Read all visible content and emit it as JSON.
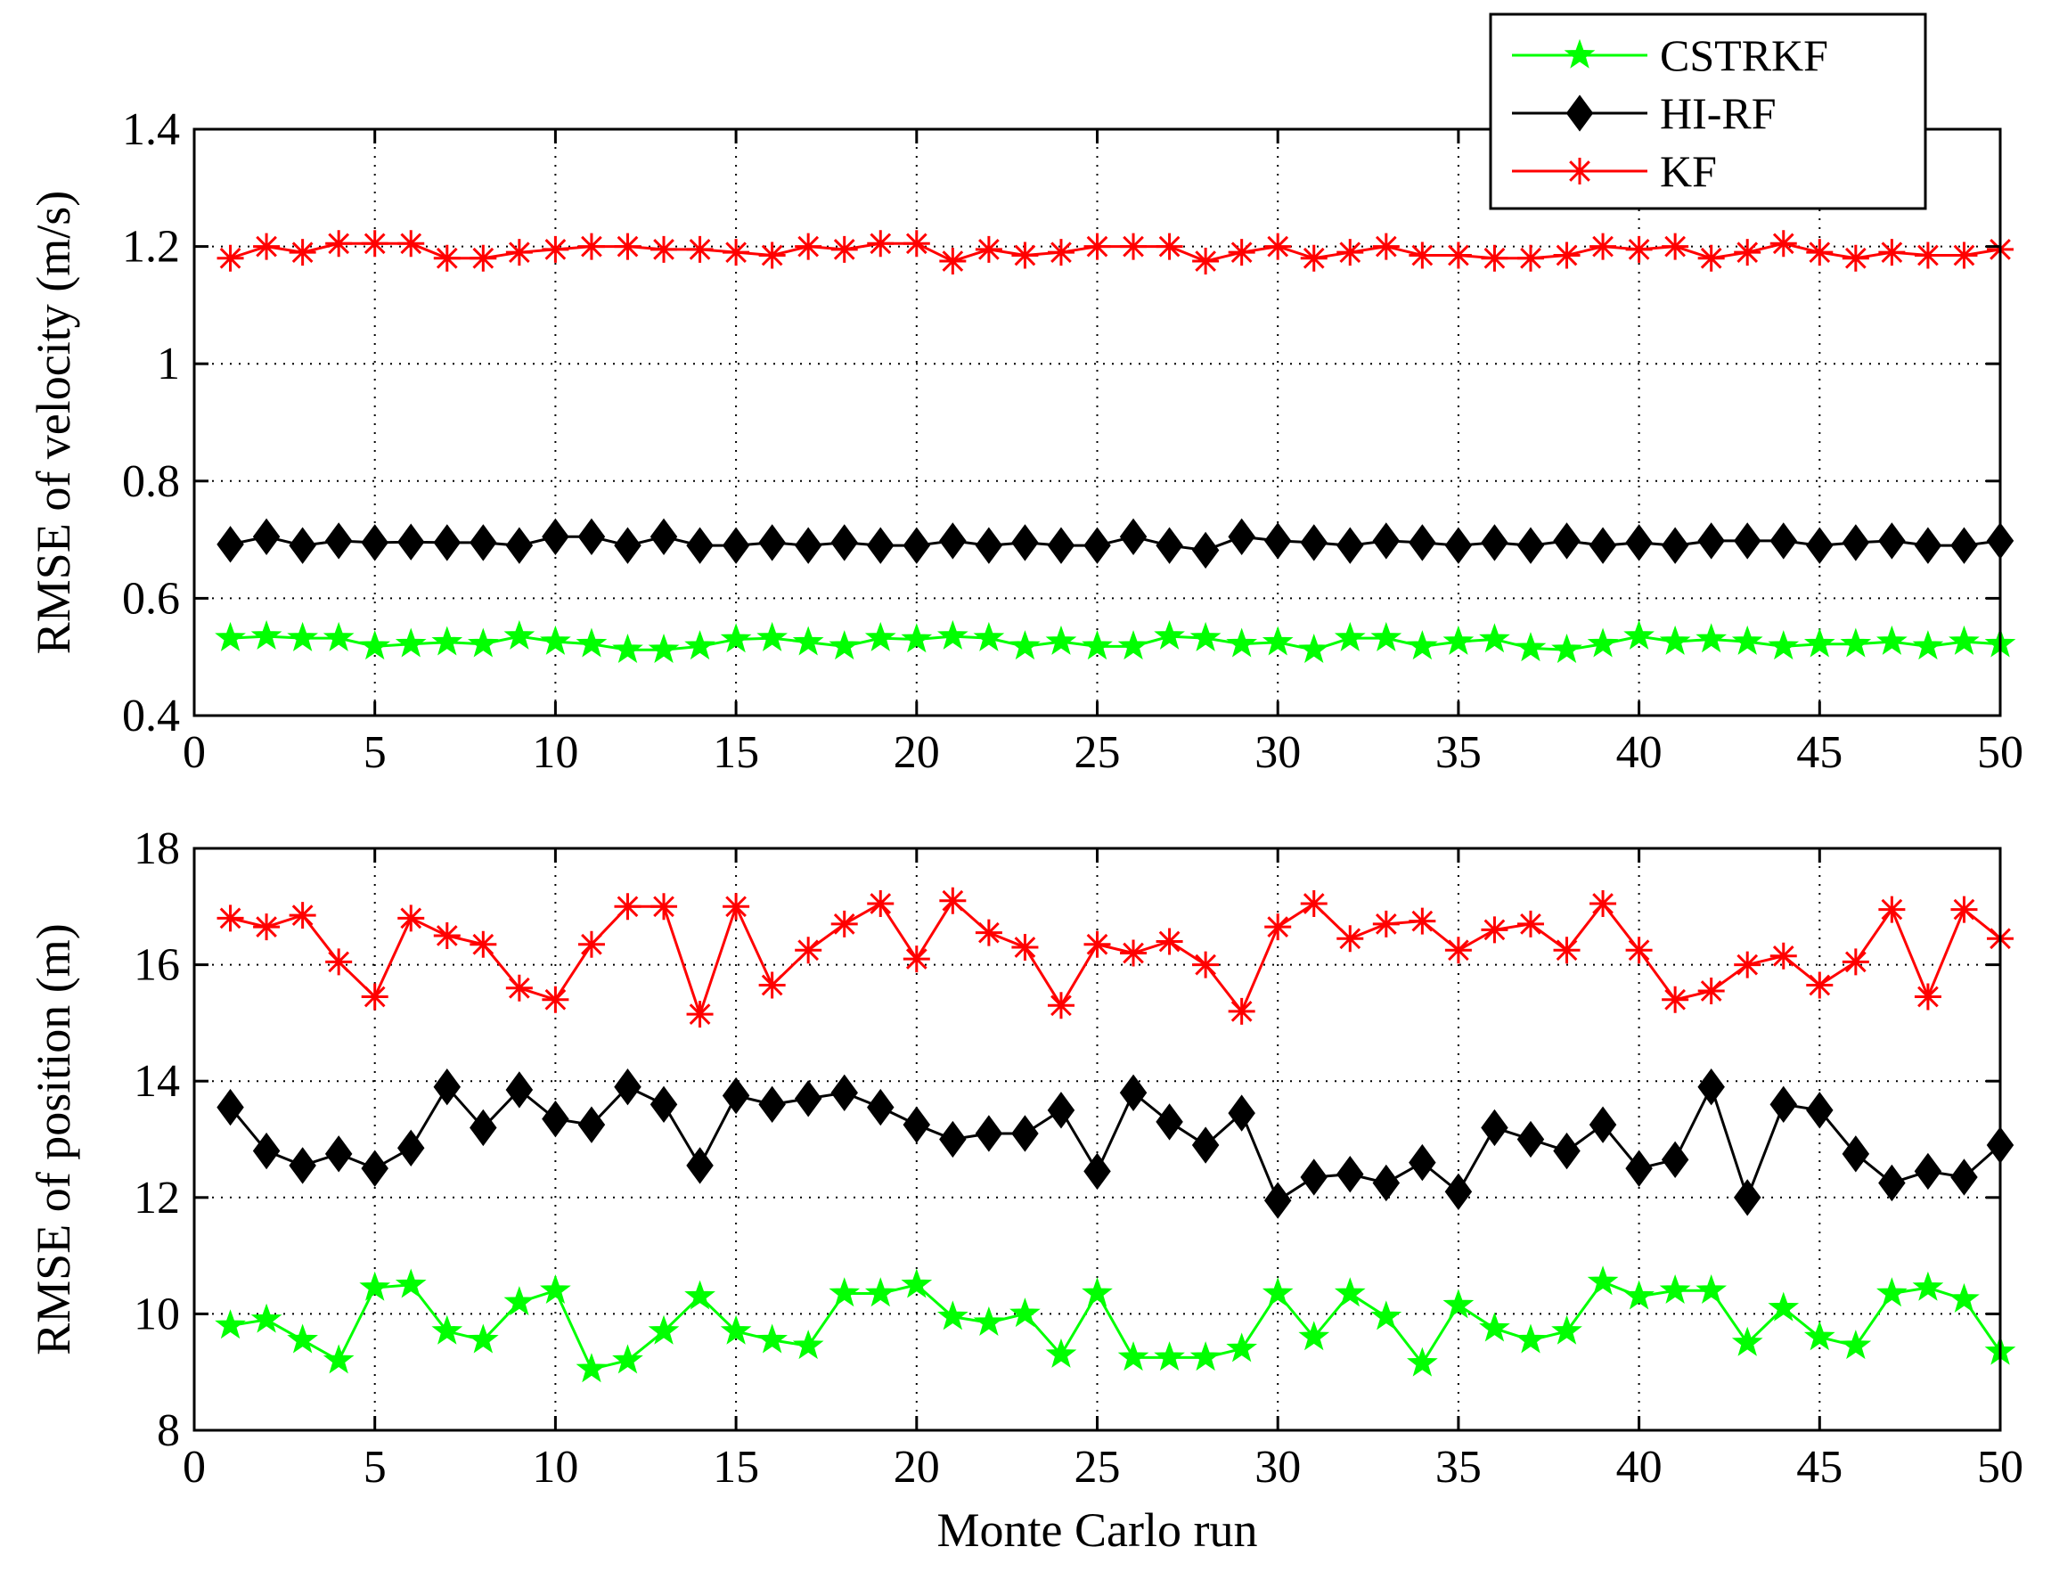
{
  "chart_data": [
    {
      "type": "line",
      "id": "velocity",
      "title": "",
      "xlabel": "",
      "ylabel": "RMSE of velocity (m/s)",
      "xlim": [
        0,
        50
      ],
      "ylim": [
        0.4,
        1.4
      ],
      "xticks": [
        0,
        5,
        10,
        15,
        20,
        25,
        30,
        35,
        40,
        45,
        50
      ],
      "yticks": [
        0.4,
        0.6,
        0.8,
        1,
        1.2,
        1.4
      ],
      "ytick_labels": [
        "0.4",
        "0.6",
        "0.8",
        "1",
        "1.2",
        "1.4"
      ],
      "grid": true,
      "x": [
        1,
        2,
        3,
        4,
        5,
        6,
        7,
        8,
        9,
        10,
        11,
        12,
        13,
        14,
        15,
        16,
        17,
        18,
        19,
        20,
        21,
        22,
        23,
        24,
        25,
        26,
        27,
        28,
        29,
        30,
        31,
        32,
        33,
        34,
        35,
        36,
        37,
        38,
        39,
        40,
        41,
        42,
        43,
        44,
        45,
        46,
        47,
        48,
        49,
        50
      ],
      "series": [
        {
          "name": "CSTRKF",
          "color": "#00ff00",
          "marker": "star",
          "values": [
            0.532,
            0.535,
            0.532,
            0.532,
            0.518,
            0.522,
            0.525,
            0.522,
            0.535,
            0.526,
            0.522,
            0.512,
            0.512,
            0.518,
            0.53,
            0.532,
            0.525,
            0.518,
            0.532,
            0.53,
            0.535,
            0.532,
            0.518,
            0.526,
            0.518,
            0.518,
            0.535,
            0.532,
            0.522,
            0.525,
            0.512,
            0.532,
            0.532,
            0.518,
            0.526,
            0.53,
            0.515,
            0.512,
            0.522,
            0.535,
            0.526,
            0.53,
            0.526,
            0.518,
            0.522,
            0.522,
            0.526,
            0.518,
            0.526,
            0.522
          ]
        },
        {
          "name": "HI-RF",
          "color": "#000000",
          "marker": "diamond",
          "values": [
            0.692,
            0.705,
            0.69,
            0.698,
            0.695,
            0.696,
            0.695,
            0.695,
            0.69,
            0.705,
            0.705,
            0.69,
            0.705,
            0.69,
            0.69,
            0.695,
            0.69,
            0.695,
            0.69,
            0.69,
            0.698,
            0.69,
            0.695,
            0.69,
            0.69,
            0.705,
            0.69,
            0.682,
            0.705,
            0.698,
            0.695,
            0.69,
            0.698,
            0.695,
            0.69,
            0.695,
            0.69,
            0.698,
            0.69,
            0.695,
            0.69,
            0.698,
            0.698,
            0.698,
            0.69,
            0.695,
            0.698,
            0.69,
            0.69,
            0.698
          ]
        },
        {
          "name": "KF",
          "color": "#ff0000",
          "marker": "asterisk",
          "values": [
            1.18,
            1.2,
            1.19,
            1.205,
            1.205,
            1.205,
            1.18,
            1.18,
            1.19,
            1.195,
            1.2,
            1.2,
            1.195,
            1.195,
            1.19,
            1.185,
            1.2,
            1.195,
            1.205,
            1.205,
            1.175,
            1.195,
            1.185,
            1.19,
            1.2,
            1.2,
            1.2,
            1.175,
            1.19,
            1.2,
            1.18,
            1.19,
            1.2,
            1.185,
            1.185,
            1.18,
            1.18,
            1.185,
            1.2,
            1.195,
            1.2,
            1.18,
            1.19,
            1.205,
            1.19,
            1.18,
            1.19,
            1.185,
            1.185,
            1.195
          ]
        }
      ]
    },
    {
      "type": "line",
      "id": "position",
      "title": "",
      "xlabel": "Monte Carlo run",
      "ylabel": "RMSE of position (m)",
      "xlim": [
        0,
        50
      ],
      "ylim": [
        8,
        18
      ],
      "xticks": [
        0,
        5,
        10,
        15,
        20,
        25,
        30,
        35,
        40,
        45,
        50
      ],
      "yticks": [
        8,
        10,
        12,
        14,
        16,
        18
      ],
      "ytick_labels": [
        "8",
        "10",
        "12",
        "14",
        "16",
        "18"
      ],
      "grid": true,
      "x": [
        1,
        2,
        3,
        4,
        5,
        6,
        7,
        8,
        9,
        10,
        11,
        12,
        13,
        14,
        15,
        16,
        17,
        18,
        19,
        20,
        21,
        22,
        23,
        24,
        25,
        26,
        27,
        28,
        29,
        30,
        31,
        32,
        33,
        34,
        35,
        36,
        37,
        38,
        39,
        40,
        41,
        42,
        43,
        44,
        45,
        46,
        47,
        48,
        49,
        50
      ],
      "series": [
        {
          "name": "CSTRKF",
          "color": "#00ff00",
          "marker": "star",
          "values": [
            9.8,
            9.9,
            9.55,
            9.2,
            10.45,
            10.5,
            9.7,
            9.55,
            10.2,
            10.4,
            9.05,
            9.2,
            9.7,
            10.3,
            9.7,
            9.55,
            9.45,
            10.35,
            10.35,
            10.5,
            9.95,
            9.85,
            10.0,
            9.3,
            10.35,
            9.25,
            9.25,
            9.25,
            9.4,
            10.35,
            9.6,
            10.35,
            9.95,
            9.15,
            10.15,
            9.75,
            9.55,
            9.7,
            10.55,
            10.3,
            10.4,
            10.4,
            9.5,
            10.1,
            9.6,
            9.45,
            10.35,
            10.45,
            10.25,
            9.35
          ]
        },
        {
          "name": "HI-RF",
          "color": "#000000",
          "marker": "diamond",
          "values": [
            13.55,
            12.8,
            12.55,
            12.75,
            12.5,
            12.85,
            13.9,
            13.2,
            13.85,
            13.35,
            13.25,
            13.9,
            13.6,
            12.55,
            13.75,
            13.6,
            13.7,
            13.8,
            13.55,
            13.25,
            13.0,
            13.1,
            13.1,
            13.5,
            12.45,
            13.8,
            13.3,
            12.9,
            13.45,
            11.95,
            12.35,
            12.4,
            12.25,
            12.6,
            12.1,
            13.2,
            13.0,
            12.8,
            13.25,
            12.5,
            12.65,
            13.9,
            12.0,
            13.6,
            13.5,
            12.75,
            12.25,
            12.45,
            12.35,
            12.9
          ]
        },
        {
          "name": "KF",
          "color": "#ff0000",
          "marker": "asterisk",
          "values": [
            16.8,
            16.65,
            16.85,
            16.05,
            15.45,
            16.8,
            16.5,
            16.35,
            15.6,
            15.4,
            16.35,
            17.0,
            17.0,
            15.15,
            17.0,
            15.65,
            16.25,
            16.7,
            17.05,
            16.1,
            17.1,
            16.55,
            16.3,
            15.3,
            16.35,
            16.2,
            16.4,
            16.0,
            15.2,
            16.65,
            17.05,
            16.45,
            16.7,
            16.75,
            16.25,
            16.6,
            16.7,
            16.25,
            17.05,
            16.25,
            15.4,
            15.55,
            16.0,
            16.15,
            15.65,
            16.05,
            16.95,
            15.45,
            16.95,
            16.45
          ]
        }
      ]
    }
  ],
  "legend": {
    "placement": "top-right",
    "entries": [
      {
        "label": "CSTRKF",
        "color": "#00ff00",
        "marker": "star"
      },
      {
        "label": "HI-RF",
        "color": "#000000",
        "marker": "diamond"
      },
      {
        "label": "KF",
        "color": "#ff0000",
        "marker": "asterisk"
      }
    ]
  }
}
